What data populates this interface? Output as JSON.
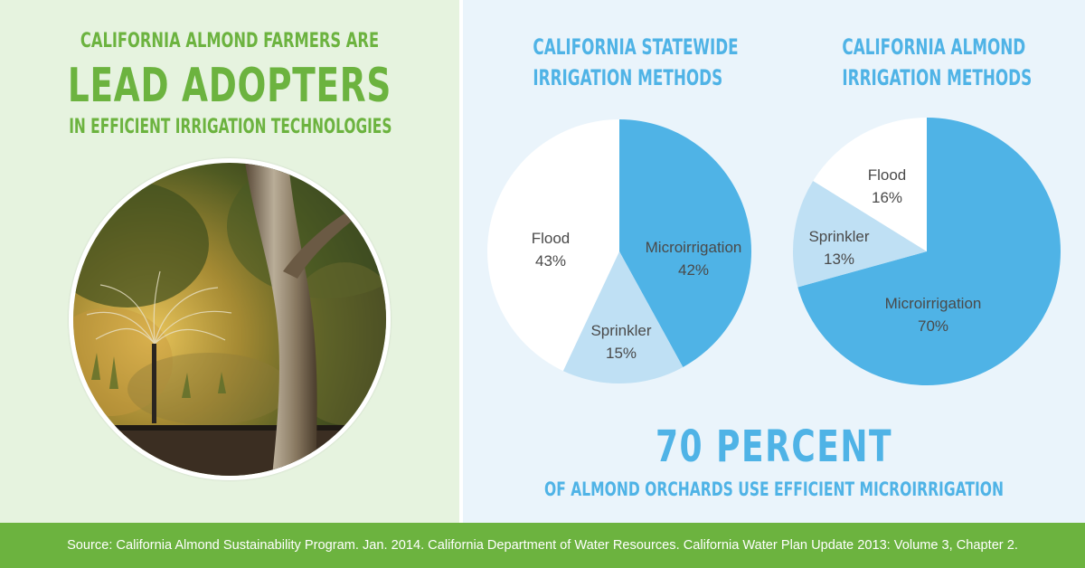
{
  "headline": {
    "line1": "CALIFORNIA ALMOND FARMERS ARE",
    "line2": "LEAD ADOPTERS",
    "line3": "IN EFFICIENT IRRIGATION TECHNOLOGIES"
  },
  "photo": {
    "subject": "sprinkler-irrigating-almond-tree-photo"
  },
  "chart_data": [
    {
      "type": "pie",
      "title": "CALIFORNIA STATEWIDE IRRIGATION METHODS",
      "title_lines": [
        "CALIFORNIA STATEWIDE",
        "IRRIGATION METHODS"
      ],
      "slices": [
        {
          "label": "Microirrigation",
          "value": 42,
          "display": "42%",
          "color": "#4fb3e6"
        },
        {
          "label": "Sprinkler",
          "value": 15,
          "display": "15%",
          "color": "#bfe0f4"
        },
        {
          "label": "Flood",
          "value": 43,
          "display": "43%",
          "color": "#ffffff"
        }
      ]
    },
    {
      "type": "pie",
      "title": "CALIFORNIA ALMOND IRRIGATION METHODS",
      "title_lines": [
        "CALIFORNIA ALMOND",
        "IRRIGATION METHODS"
      ],
      "slices": [
        {
          "label": "Microirrigation",
          "value": 70,
          "display": "70%",
          "color": "#4fb3e6"
        },
        {
          "label": "Sprinkler",
          "value": 13,
          "display": "13%",
          "color": "#bfe0f4"
        },
        {
          "label": "Flood",
          "value": 16,
          "display": "16%",
          "color": "#ffffff"
        }
      ]
    }
  ],
  "highlight": {
    "big": "70 PERCENT",
    "sub": "OF ALMOND ORCHARDS USE EFFICIENT MICROIRRIGATION"
  },
  "footer": {
    "source": "Source: California Almond Sustainability Program. Jan. 2014. California Department of Water Resources. California Water Plan Update 2013: Volume 3, Chapter 2."
  },
  "colors": {
    "green": "#6cb33f",
    "blue": "#4fb3e6",
    "light_blue": "#bfe0f4"
  }
}
